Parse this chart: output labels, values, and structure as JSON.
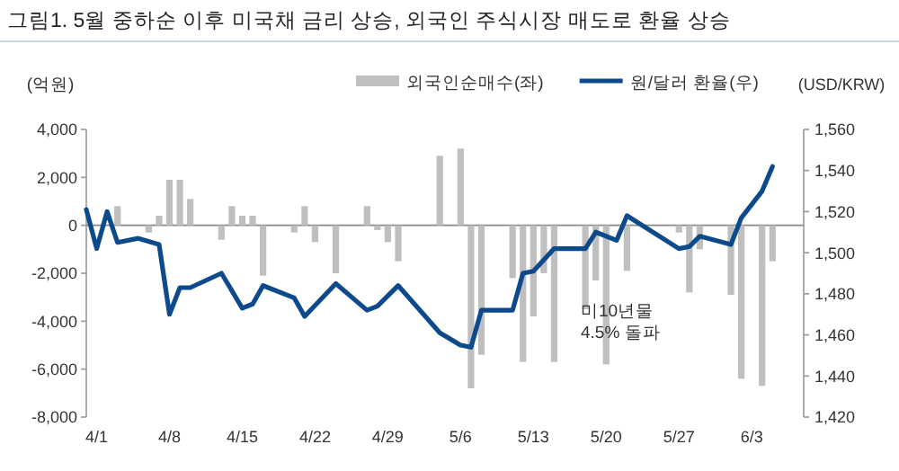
{
  "chart_data": {
    "type": "bar",
    "title": "그림1. 5월 중하순 이후 미국채 금리 상승, 외국인 주식시장 매도로 환율 상승",
    "ylabel": "(억원)",
    "y2label": "(USD/KRW)",
    "xlim": [
      "--03-31",
      "--06-08"
    ],
    "xticks": [
      {
        "value": "--04-01",
        "label": "4/1"
      },
      {
        "value": "--04-08",
        "label": "4/8"
      },
      {
        "value": "--04-15",
        "label": "4/15"
      },
      {
        "value": "--04-22",
        "label": "4/22"
      },
      {
        "value": "--04-29",
        "label": "4/29"
      },
      {
        "value": "--05-06",
        "label": "5/6"
      },
      {
        "value": "--05-13",
        "label": "5/13"
      },
      {
        "value": "--05-20",
        "label": "5/20"
      },
      {
        "value": "--05-27",
        "label": "5/27"
      },
      {
        "value": "--06-03",
        "label": "6/3"
      }
    ],
    "ylim": [
      -8000,
      4000
    ],
    "yticks": [
      {
        "value": -8000,
        "label": "-8,000"
      },
      {
        "value": -6000,
        "label": "-6,000"
      },
      {
        "value": -4000,
        "label": "-4,000"
      },
      {
        "value": -2000,
        "label": "-2,000"
      },
      0,
      {
        "value": 2000,
        "label": "2,000"
      },
      {
        "value": 4000,
        "label": "4,000"
      }
    ],
    "y2lim": [
      1420,
      1560
    ],
    "y2ticks": [
      {
        "value": 1420,
        "label": "1,420"
      },
      {
        "value": 1440,
        "label": "1,440"
      },
      {
        "value": 1460,
        "label": "1,460"
      },
      {
        "value": 1480,
        "label": "1,480"
      },
      {
        "value": 1500,
        "label": "1,500"
      },
      {
        "value": 1520,
        "label": "1,520"
      },
      {
        "value": 1540,
        "label": "1,540"
      },
      {
        "value": 1560,
        "label": "1,560"
      }
    ],
    "legend": "top",
    "annotations": [
      "미10년물 4.5% 돌파"
    ],
    "series": [
      {
        "name": "외국인순매수(좌)",
        "color": "#bfbfbf",
        "x": [
          "--04-03",
          "--04-06",
          "--04-07",
          "--04-08",
          "--04-09",
          "--04-10",
          "--04-13",
          "--04-14",
          "--04-15",
          "--04-16",
          "--04-17",
          "--04-20",
          "--04-21",
          "--04-22",
          "--04-24",
          "--04-27",
          "--04-28",
          "--04-29",
          "--04-30",
          "--05-04",
          "--05-06",
          "--05-07",
          "--05-08",
          "--05-11",
          "--05-12",
          "--05-13",
          "--05-14",
          "--05-15",
          "--05-18",
          "--05-19",
          "--05-20",
          "--05-22",
          "--05-27",
          "--05-28",
          "--05-29",
          "--06-01",
          "--06-02",
          "--06-04",
          "--06-05"
        ],
        "values": [
          800,
          -300,
          400,
          1900,
          1900,
          1100,
          -600,
          800,
          400,
          400,
          -2100,
          -300,
          800,
          -700,
          -2000,
          800,
          -200,
          -700,
          -1500,
          2900,
          3200,
          -6800,
          -5400,
          -2200,
          -5700,
          -3800,
          -2000,
          -5700,
          -3500,
          -2300,
          -5800,
          -1900,
          -300,
          -2800,
          -1000,
          -2900,
          -6400,
          -6700,
          -1500
        ]
      },
      {
        "name": "원/달러 환율(우)",
        "type": "line",
        "axis": "y2",
        "color": "#0d4a8c",
        "x": [
          "--03-31",
          "--04-01",
          "--04-02",
          "--04-03",
          "--04-05",
          "--04-07",
          "--04-08",
          "--04-09",
          "--04-10",
          "--04-13",
          "--04-15",
          "--04-16",
          "--04-17",
          "--04-20",
          "--04-21",
          "--04-24",
          "--04-27",
          "--04-28",
          "--04-30",
          "--05-04",
          "--05-06",
          "--05-07",
          "--05-08",
          "--05-11",
          "--05-12",
          "--05-13",
          "--05-15",
          "--05-18",
          "--05-19",
          "--05-21",
          "--05-22",
          "--05-27",
          "--05-28",
          "--05-29",
          "--06-01",
          "--06-02",
          "--06-04",
          "--06-05"
        ],
        "values": [
          1521,
          1502,
          1520,
          1505,
          1507,
          1504,
          1470,
          1483,
          1483,
          1490,
          1473,
          1475,
          1484,
          1478,
          1469,
          1485,
          1472,
          1474,
          1484,
          1461,
          1455,
          1454,
          1472,
          1472,
          1490,
          1491,
          1502,
          1502,
          1510,
          1506,
          1518,
          1502,
          1503,
          1508,
          1504,
          1517,
          1530,
          1542
        ]
      }
    ]
  }
}
